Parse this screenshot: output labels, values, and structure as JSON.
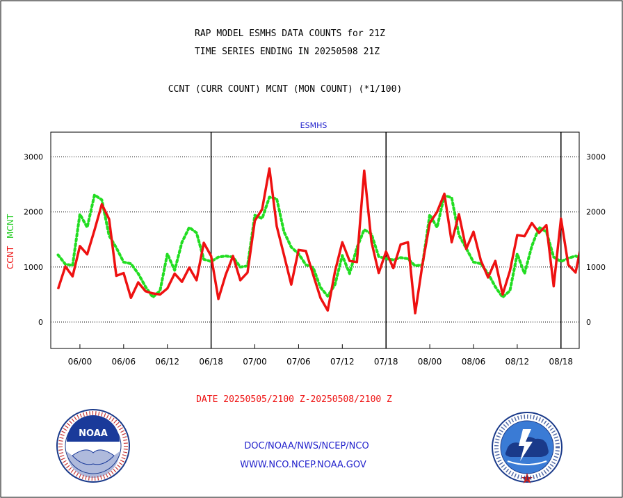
{
  "header": {
    "title_line1": "RAP MODEL ESMHS DATA COUNTS for 21Z",
    "title_line2": "TIME SERIES ENDING IN 20250508 21Z",
    "subtitle": "CCNT (CURR COUNT) MCNT (MON COUNT) (*1/100)"
  },
  "footer": {
    "date_range": "DATE 20250505/2100 Z-20250508/2100 Z",
    "org_text": "DOC/NOAA/NWS/NCEP/NCO",
    "url_text": "WWW.NCO.NCEP.NOAA.GOV",
    "noaa_logo_text": "NOAA",
    "nws_logo_text": "NATIONAL WEATHER SERVICE"
  },
  "colors": {
    "ccnt": "#ee1111",
    "mcnt": "#22dd22",
    "label_blue": "#2222cc",
    "frame": "#000000"
  },
  "chart_data": {
    "type": "line",
    "title": "ESMHS",
    "ylabel_ccnt": "CCNT",
    "ylabel_mcnt": "MCNT",
    "ylim": [
      -480,
      3450
    ],
    "y_ticks": [
      0,
      1000,
      2000,
      3000
    ],
    "grid": "dotted horizontal at y ticks",
    "x_hours_range": [
      -4,
      68.5
    ],
    "x_tick_labels": [
      {
        "hour": 0,
        "label": "06/00"
      },
      {
        "hour": 6,
        "label": "06/06"
      },
      {
        "hour": 12,
        "label": "06/12"
      },
      {
        "hour": 18,
        "label": "06/18"
      },
      {
        "hour": 24,
        "label": "07/00"
      },
      {
        "hour": 30,
        "label": "07/06"
      },
      {
        "hour": 36,
        "label": "07/12"
      },
      {
        "hour": 42,
        "label": "07/18"
      },
      {
        "hour": 48,
        "label": "08/00"
      },
      {
        "hour": 54,
        "label": "08/06"
      },
      {
        "hour": 60,
        "label": "08/12"
      },
      {
        "hour": 66,
        "label": "08/18"
      }
    ],
    "day_dividers_hours": [
      18,
      42,
      66
    ],
    "series": [
      {
        "name": "CCNT",
        "style": "solid",
        "x": [
          -3,
          -2,
          -1,
          0,
          1,
          2,
          3,
          4,
          5,
          6,
          7,
          8,
          9,
          10,
          11,
          12,
          13,
          14,
          15,
          16,
          17,
          18,
          19,
          20,
          21,
          22,
          23,
          24,
          25,
          26,
          27,
          28,
          29,
          30,
          31,
          32,
          33,
          34,
          35,
          36,
          37,
          38,
          39,
          40,
          41,
          42,
          43,
          44,
          45,
          46,
          47,
          48,
          49,
          50,
          51,
          52,
          53,
          54,
          55,
          56,
          57,
          58,
          59,
          60,
          61,
          62,
          63,
          64,
          65,
          66,
          67,
          68,
          69
        ],
        "values": [
          600,
          1010,
          830,
          1380,
          1230,
          1670,
          2140,
          1870,
          840,
          890,
          440,
          720,
          560,
          520,
          500,
          610,
          880,
          730,
          990,
          760,
          1440,
          1200,
          420,
          860,
          1200,
          760,
          900,
          1840,
          2050,
          2790,
          1740,
          1220,
          680,
          1310,
          1290,
          860,
          440,
          210,
          920,
          1450,
          1110,
          1090,
          2750,
          1460,
          890,
          1280,
          980,
          1410,
          1450,
          160,
          1050,
          1800,
          2000,
          2330,
          1450,
          1960,
          1330,
          1640,
          1120,
          810,
          1110,
          500,
          930,
          1580,
          1560,
          1800,
          1620,
          1760,
          650,
          1880,
          1040,
          900,
          1540
        ]
      },
      {
        "name": "MCNT",
        "style": "dotted",
        "x": [
          -3,
          -2,
          -1,
          0,
          1,
          2,
          3,
          4,
          5,
          6,
          7,
          8,
          9,
          10,
          11,
          12,
          13,
          14,
          15,
          16,
          17,
          18,
          19,
          20,
          21,
          22,
          23,
          24,
          25,
          26,
          27,
          28,
          29,
          30,
          31,
          32,
          33,
          34,
          35,
          36,
          37,
          38,
          39,
          40,
          41,
          42,
          43,
          44,
          45,
          46,
          47,
          48,
          49,
          50,
          51,
          52,
          53,
          54,
          55,
          56,
          57,
          58,
          59,
          60,
          61,
          62,
          63,
          64,
          65,
          66,
          67,
          68,
          69
        ],
        "values": [
          1220,
          1050,
          1030,
          1960,
          1720,
          2310,
          2220,
          1570,
          1350,
          1090,
          1060,
          880,
          640,
          450,
          570,
          1240,
          940,
          1450,
          1720,
          1620,
          1140,
          1100,
          1180,
          1200,
          1180,
          1000,
          1020,
          1940,
          1880,
          2270,
          2240,
          1640,
          1360,
          1240,
          1040,
          990,
          630,
          470,
          680,
          1210,
          880,
          1350,
          1680,
          1600,
          1190,
          1150,
          1130,
          1170,
          1150,
          1020,
          1040,
          1950,
          1720,
          2300,
          2260,
          1580,
          1340,
          1090,
          1060,
          880,
          640,
          450,
          570,
          1240,
          880,
          1380,
          1720,
          1640,
          1180,
          1100,
          1160,
          1200,
          1150
        ]
      }
    ]
  }
}
